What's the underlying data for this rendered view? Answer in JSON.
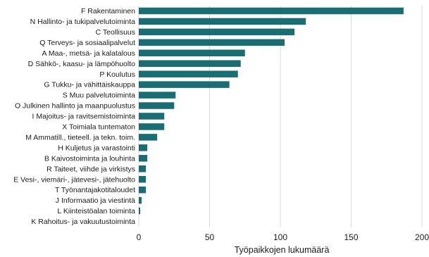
{
  "chart_data": {
    "type": "bar",
    "orientation": "horizontal",
    "categories": [
      "F Rakentaminen",
      "N Hallinto- ja tukipalvelutoiminta",
      "C Teollisuus",
      "Q Terveys- ja sosiaalipalvelut",
      "A Maa-, metsä- ja kalatalous",
      "D Sähkö-, kaasu- ja lämpöhuolto",
      "P Koulutus",
      "G Tukku- ja vähittäiskauppa",
      "S Muu palvelutoiminta",
      "O Julkinen hallinto ja maanpuolustus",
      "I Majoitus- ja ravitsemistoiminta",
      "X Toimiala tuntematon",
      "M Ammatill., tieteell. ja tekn. toim.",
      "H Kuljetus ja varastointi",
      "B Kaivostoiminta ja louhinta",
      "R Taiteet, viihde ja virkistys",
      "E Vesi-, viemäri-,  jätevesi-, jätehuolto",
      "T Työnantajakotitaloudet",
      "J Informaatio ja viestintä",
      "L Kiinteistöalan toiminta",
      "K Rahoitus- ja vakuutustoiminta"
    ],
    "values": [
      187,
      118,
      110,
      103,
      75,
      72,
      70,
      64,
      26,
      25,
      18,
      18,
      13,
      6,
      6,
      5,
      5,
      5,
      2,
      1,
      0
    ],
    "xlabel": "Työpaikkojen lukumäärä",
    "xlim": [
      0,
      200
    ],
    "xticks": [
      "0",
      "50",
      "100",
      "150",
      "200"
    ],
    "grid": "vertical",
    "bar_color": "#1a6e73"
  }
}
